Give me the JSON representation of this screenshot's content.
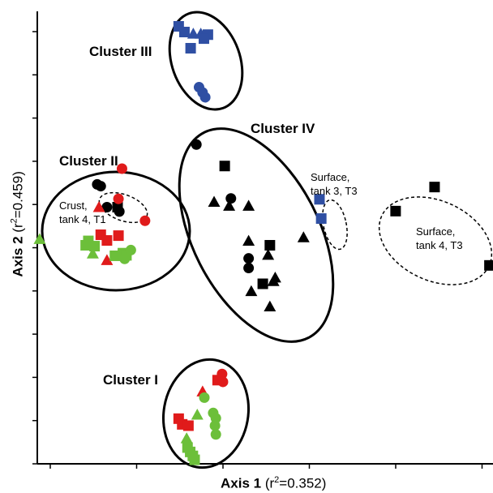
{
  "chart_data": {
    "type": "scatter",
    "xlabel_main": "Axis 1",
    "xlabel_var": "(r",
    "xlabel_sup": "2",
    "xlabel_val": "=0.352)",
    "ylabel_main": "Axis 2",
    "ylabel_var": "(r",
    "ylabel_sup": "2",
    "ylabel_val": "=0.459)",
    "xlim": [
      0,
      100
    ],
    "ylim": [
      0,
      100
    ],
    "colors": {
      "blue": "#2f4fa3",
      "black": "#000000",
      "red": "#e01b1b",
      "green": "#6cbf3a"
    },
    "clusters": [
      {
        "label": "Cluster III"
      },
      {
        "label": "Cluster II"
      },
      {
        "label": "Cluster IV"
      },
      {
        "label": "Cluster I"
      }
    ],
    "annotations": [
      {
        "lines": [
          "Crust,",
          "tank 4, T1"
        ]
      },
      {
        "lines": [
          "Surface,",
          "tank 3, T3"
        ]
      },
      {
        "lines": [
          "Surface,",
          "tank 4, T3"
        ]
      }
    ],
    "points": [
      {
        "x": 31.2,
        "y": 98.8,
        "shape": "square",
        "color": "blue"
      },
      {
        "x": 32.5,
        "y": 97.5,
        "shape": "square",
        "color": "blue"
      },
      {
        "x": 34.5,
        "y": 97.1,
        "shape": "triangle",
        "color": "blue"
      },
      {
        "x": 36.2,
        "y": 97.1,
        "shape": "triangle",
        "color": "blue"
      },
      {
        "x": 37.8,
        "y": 96.9,
        "shape": "square",
        "color": "blue"
      },
      {
        "x": 36.9,
        "y": 96.0,
        "shape": "square",
        "color": "blue"
      },
      {
        "x": 33.9,
        "y": 93.8,
        "shape": "square",
        "color": "blue"
      },
      {
        "x": 35.8,
        "y": 84.9,
        "shape": "circle",
        "color": "blue"
      },
      {
        "x": 36.6,
        "y": 83.7,
        "shape": "circle",
        "color": "blue"
      },
      {
        "x": 37.2,
        "y": 82.6,
        "shape": "circle",
        "color": "blue"
      },
      {
        "x": 12.8,
        "y": 62.7,
        "shape": "circle",
        "color": "black"
      },
      {
        "x": 13.6,
        "y": 62.3,
        "shape": "circle",
        "color": "black"
      },
      {
        "x": 15.0,
        "y": 57.5,
        "shape": "circle",
        "color": "black"
      },
      {
        "x": 17.4,
        "y": 57.5,
        "shape": "square",
        "color": "black"
      },
      {
        "x": 17.8,
        "y": 56.5,
        "shape": "circle",
        "color": "black"
      },
      {
        "x": 13.2,
        "y": 57.5,
        "shape": "triangle",
        "color": "red"
      },
      {
        "x": 18.4,
        "y": 66.3,
        "shape": "circle",
        "color": "red"
      },
      {
        "x": 17.6,
        "y": 59.4,
        "shape": "circle",
        "color": "red"
      },
      {
        "x": 23.6,
        "y": 54.4,
        "shape": "circle",
        "color": "red"
      },
      {
        "x": 13.6,
        "y": 51.2,
        "shape": "square",
        "color": "red"
      },
      {
        "x": 17.6,
        "y": 51.0,
        "shape": "square",
        "color": "red"
      },
      {
        "x": 15.0,
        "y": 49.9,
        "shape": "square",
        "color": "red"
      },
      {
        "x": 15.0,
        "y": 45.4,
        "shape": "triangle",
        "color": "red"
      },
      {
        "x": -0.2,
        "y": 50.2,
        "shape": "triangle",
        "color": "green"
      },
      {
        "x": 10.8,
        "y": 49.8,
        "shape": "square",
        "color": "green"
      },
      {
        "x": 10.2,
        "y": 48.8,
        "shape": "square",
        "color": "green"
      },
      {
        "x": 12.2,
        "y": 48.6,
        "shape": "square",
        "color": "green"
      },
      {
        "x": 11.8,
        "y": 46.9,
        "shape": "triangle",
        "color": "green"
      },
      {
        "x": 16.8,
        "y": 46.4,
        "shape": "square",
        "color": "green"
      },
      {
        "x": 18.6,
        "y": 47.0,
        "shape": "square",
        "color": "green"
      },
      {
        "x": 19.4,
        "y": 46.5,
        "shape": "square",
        "color": "green"
      },
      {
        "x": 20.4,
        "y": 47.7,
        "shape": "circle",
        "color": "green"
      },
      {
        "x": 19.0,
        "y": 45.7,
        "shape": "circle",
        "color": "green"
      },
      {
        "x": 35.2,
        "y": 71.8,
        "shape": "circle",
        "color": "black"
      },
      {
        "x": 41.6,
        "y": 66.9,
        "shape": "square",
        "color": "black"
      },
      {
        "x": 43.0,
        "y": 59.5,
        "shape": "circle",
        "color": "black"
      },
      {
        "x": 39.2,
        "y": 58.7,
        "shape": "triangle",
        "color": "black"
      },
      {
        "x": 42.6,
        "y": 57.8,
        "shape": "triangle",
        "color": "black"
      },
      {
        "x": 47.0,
        "y": 57.8,
        "shape": "triangle",
        "color": "black"
      },
      {
        "x": 47.0,
        "y": 49.8,
        "shape": "triangle",
        "color": "black"
      },
      {
        "x": 51.4,
        "y": 46.6,
        "shape": "triangle",
        "color": "black"
      },
      {
        "x": 51.8,
        "y": 48.8,
        "shape": "square",
        "color": "black"
      },
      {
        "x": 47.0,
        "y": 45.8,
        "shape": "circle",
        "color": "black"
      },
      {
        "x": 47.0,
        "y": 43.6,
        "shape": "circle",
        "color": "black"
      },
      {
        "x": 53.0,
        "y": 41.4,
        "shape": "triangle",
        "color": "black"
      },
      {
        "x": 52.6,
        "y": 40.6,
        "shape": "triangle",
        "color": "black"
      },
      {
        "x": 50.2,
        "y": 40.0,
        "shape": "square",
        "color": "black"
      },
      {
        "x": 47.6,
        "y": 38.3,
        "shape": "triangle",
        "color": "black"
      },
      {
        "x": 59.4,
        "y": 50.6,
        "shape": "triangle",
        "color": "black"
      },
      {
        "x": 51.8,
        "y": 34.8,
        "shape": "triangle",
        "color": "black"
      },
      {
        "x": 63.0,
        "y": 59.3,
        "shape": "square",
        "color": "blue"
      },
      {
        "x": 63.4,
        "y": 54.9,
        "shape": "square",
        "color": "blue"
      },
      {
        "x": 80.2,
        "y": 56.6,
        "shape": "square",
        "color": "black"
      },
      {
        "x": 89.0,
        "y": 62.1,
        "shape": "square",
        "color": "black"
      },
      {
        "x": 101.4,
        "y": 44.2,
        "shape": "square",
        "color": "black"
      },
      {
        "x": 41.0,
        "y": 19.4,
        "shape": "circle",
        "color": "red"
      },
      {
        "x": 40.0,
        "y": 18.0,
        "shape": "square",
        "color": "red"
      },
      {
        "x": 41.2,
        "y": 17.6,
        "shape": "circle",
        "color": "red"
      },
      {
        "x": 36.6,
        "y": 15.4,
        "shape": "triangle",
        "color": "red"
      },
      {
        "x": 37.0,
        "y": 14.0,
        "shape": "circle",
        "color": "green"
      },
      {
        "x": 31.2,
        "y": 9.2,
        "shape": "square",
        "color": "red"
      },
      {
        "x": 32.0,
        "y": 7.9,
        "shape": "square",
        "color": "red"
      },
      {
        "x": 33.4,
        "y": 7.6,
        "shape": "square",
        "color": "red"
      },
      {
        "x": 35.4,
        "y": 10.1,
        "shape": "triangle",
        "color": "green"
      },
      {
        "x": 39.0,
        "y": 10.5,
        "shape": "circle",
        "color": "green"
      },
      {
        "x": 39.6,
        "y": 9.3,
        "shape": "circle",
        "color": "green"
      },
      {
        "x": 39.4,
        "y": 7.6,
        "shape": "circle",
        "color": "green"
      },
      {
        "x": 39.6,
        "y": 5.6,
        "shape": "circle",
        "color": "green"
      },
      {
        "x": 33.0,
        "y": 4.7,
        "shape": "triangle",
        "color": "green"
      },
      {
        "x": 33.2,
        "y": 2.6,
        "shape": "square",
        "color": "green"
      },
      {
        "x": 33.8,
        "y": 1.6,
        "shape": "square",
        "color": "green"
      },
      {
        "x": 34.4,
        "y": 0.7,
        "shape": "square",
        "color": "green"
      },
      {
        "x": 34.8,
        "y": -0.2,
        "shape": "square",
        "color": "green"
      }
    ],
    "grid": false,
    "legend": "none"
  }
}
